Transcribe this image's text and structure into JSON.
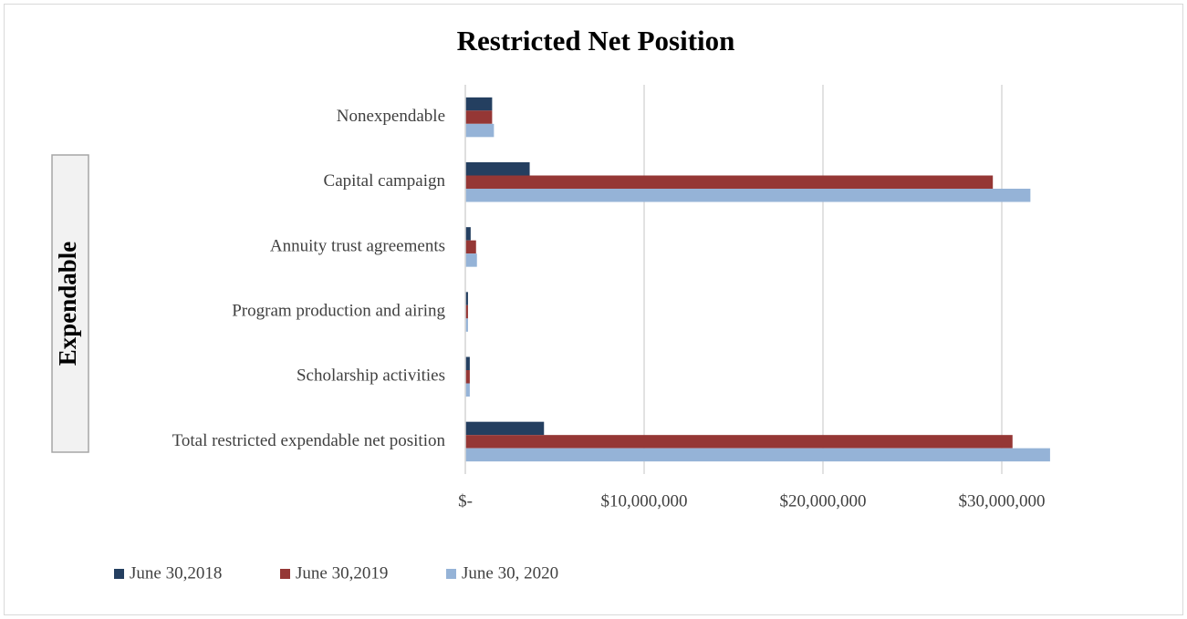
{
  "chart_data": {
    "type": "bar",
    "orientation": "horizontal",
    "title": "Restricted Net Position",
    "annotation": "Expendable",
    "categories": [
      "Nonexpendable",
      "Capital campaign",
      "Annuity trust agreements",
      "Program production and airing",
      "Scholarship activities",
      "Total restricted expendable net position"
    ],
    "series": [
      {
        "name": "June 30,2018",
        "color": "#243f60",
        "values": [
          1500000,
          3600000,
          300000,
          150000,
          250000,
          4400000
        ]
      },
      {
        "name": "June 30,2019",
        "color": "#953735",
        "values": [
          1500000,
          29500000,
          600000,
          150000,
          250000,
          30600000
        ]
      },
      {
        "name": "June 30, 2020",
        "color": "#95b3d7",
        "values": [
          1600000,
          31600000,
          650000,
          150000,
          250000,
          32700000
        ]
      }
    ],
    "xlim": [
      0,
      35000000
    ],
    "xticks": [
      {
        "value": 0,
        "label": "$-"
      },
      {
        "value": 10000000,
        "label": "$10,000,000"
      },
      {
        "value": 20000000,
        "label": "$20,000,000"
      },
      {
        "value": 30000000,
        "label": "$30,000,000"
      }
    ],
    "grid": true,
    "legend": "bottom"
  }
}
